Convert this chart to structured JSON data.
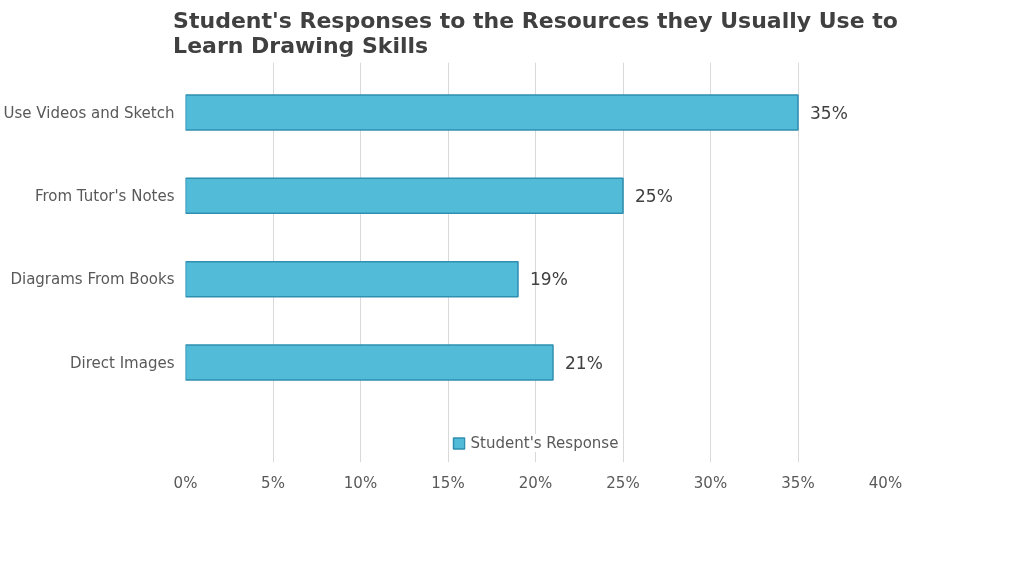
{
  "chart_data": {
    "type": "bar",
    "orientation": "horizontal",
    "title": "Student's Responses to the Resources they Usually Use to Learn Drawing Skills",
    "categories": [
      "Use Videos and Sketch",
      "From Tutor's Notes",
      "Diagrams From Books",
      "Direct Images"
    ],
    "series": [
      {
        "name": "Student's Response",
        "color": "#52bcd8",
        "values": [
          35,
          25,
          19,
          21
        ],
        "value_labels": [
          "35%",
          "25%",
          "19%",
          "21%"
        ]
      }
    ],
    "xlim": [
      0,
      40
    ],
    "xticks": [
      {
        "value": 0,
        "label": "0%"
      },
      {
        "value": 5,
        "label": "5%"
      },
      {
        "value": 10,
        "label": "10%"
      },
      {
        "value": 15,
        "label": "15%"
      },
      {
        "value": 20,
        "label": "20%"
      },
      {
        "value": 25,
        "label": "25%"
      },
      {
        "value": 30,
        "label": "30%"
      },
      {
        "value": 35,
        "label": "35%"
      },
      {
        "value": 40,
        "label": "40%"
      }
    ],
    "grid": "x",
    "legend": "bottom"
  }
}
